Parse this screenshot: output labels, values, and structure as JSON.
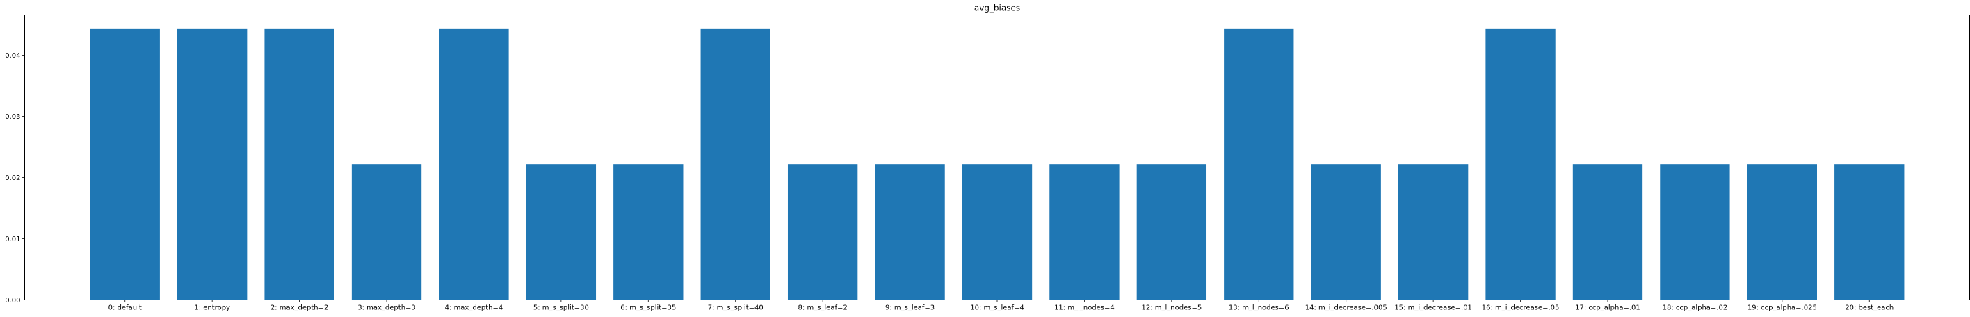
{
  "chart_data": {
    "type": "bar",
    "title": "avg_biases",
    "xlabel": "",
    "ylabel": "",
    "categories": [
      "0: default",
      "1: entropy",
      "2: max_depth=2",
      "3: max_depth=3",
      "4: max_depth=4",
      "5: m_s_split=30",
      "6: m_s_split=35",
      "7: m_s_split=40",
      "8: m_s_leaf=2",
      "9: m_s_leaf=3",
      "10: m_s_leaf=4",
      "11: m_l_nodes=4",
      "12: m_l_nodes=5",
      "13: m_l_nodes=6",
      "14: m_i_decrease=.005",
      "15: m_i_decrease=.01",
      "16: m_i_decrease=.05",
      "17: ccp_alpha=.01",
      "18: ccp_alpha=.02",
      "19: ccp_alpha=.025",
      "20: best_each"
    ],
    "values": [
      0.0444,
      0.0444,
      0.0444,
      0.0222,
      0.0444,
      0.0222,
      0.0222,
      0.0444,
      0.0222,
      0.0222,
      0.0222,
      0.0222,
      0.0222,
      0.0444,
      0.0222,
      0.0222,
      0.0444,
      0.0222,
      0.0222,
      0.0222,
      0.0222
    ],
    "ylim": [
      0,
      0.0466
    ],
    "yticks": [
      0.0,
      0.01,
      0.02,
      0.03,
      0.04
    ],
    "ytick_labels": [
      "0.00",
      "0.01",
      "0.02",
      "0.03",
      "0.04"
    ],
    "bar_color": "#1f77b4",
    "grid": false,
    "legend": "none"
  }
}
